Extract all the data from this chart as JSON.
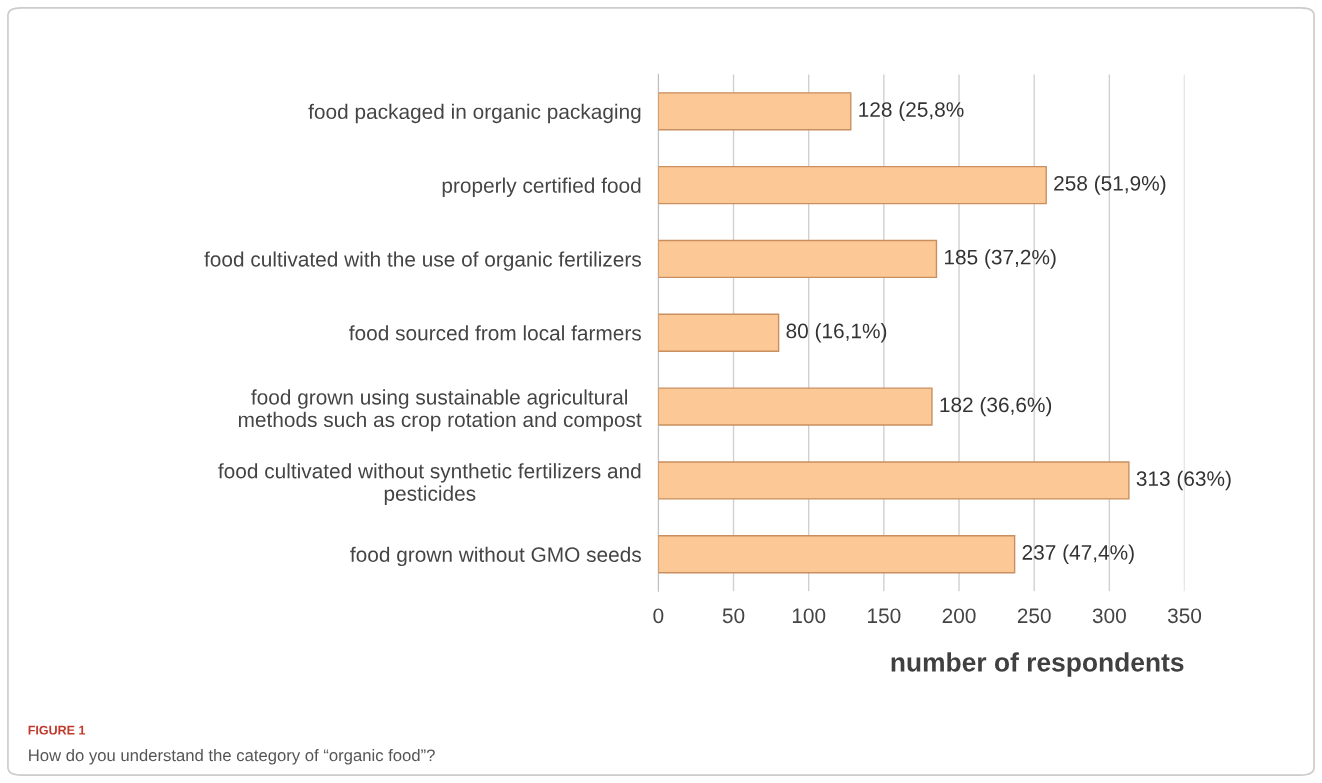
{
  "chart_data": {
    "type": "bar",
    "orientation": "horizontal",
    "categories": [
      "food packaged in organic packaging",
      "properly certified food",
      "food cultivated with the use of organic fertilizers",
      "food sourced from local farmers",
      "food grown using sustainable agricultural\nmethods such as crop rotation and compost",
      "food cultivated without synthetic fertilizers and\npesticides",
      "food grown without GMO seeds"
    ],
    "values": [
      128,
      258,
      185,
      80,
      182,
      313,
      237
    ],
    "value_labels": [
      "128 (25,8%",
      "258 (51,9%)",
      "185 (37,2%)",
      "80 (16,1%)",
      "182 (36,6%)",
      "313 (63%)",
      "237 (47,4%)"
    ],
    "color": "#fbc896",
    "xlim": [
      0,
      350
    ],
    "xticks": [
      0,
      50,
      100,
      150,
      200,
      250,
      300,
      350
    ],
    "xlabel": "number of respondents",
    "grid": "x",
    "annotations": [
      "FIGURE 1",
      "How do you understand the category of “organic food”?"
    ]
  }
}
